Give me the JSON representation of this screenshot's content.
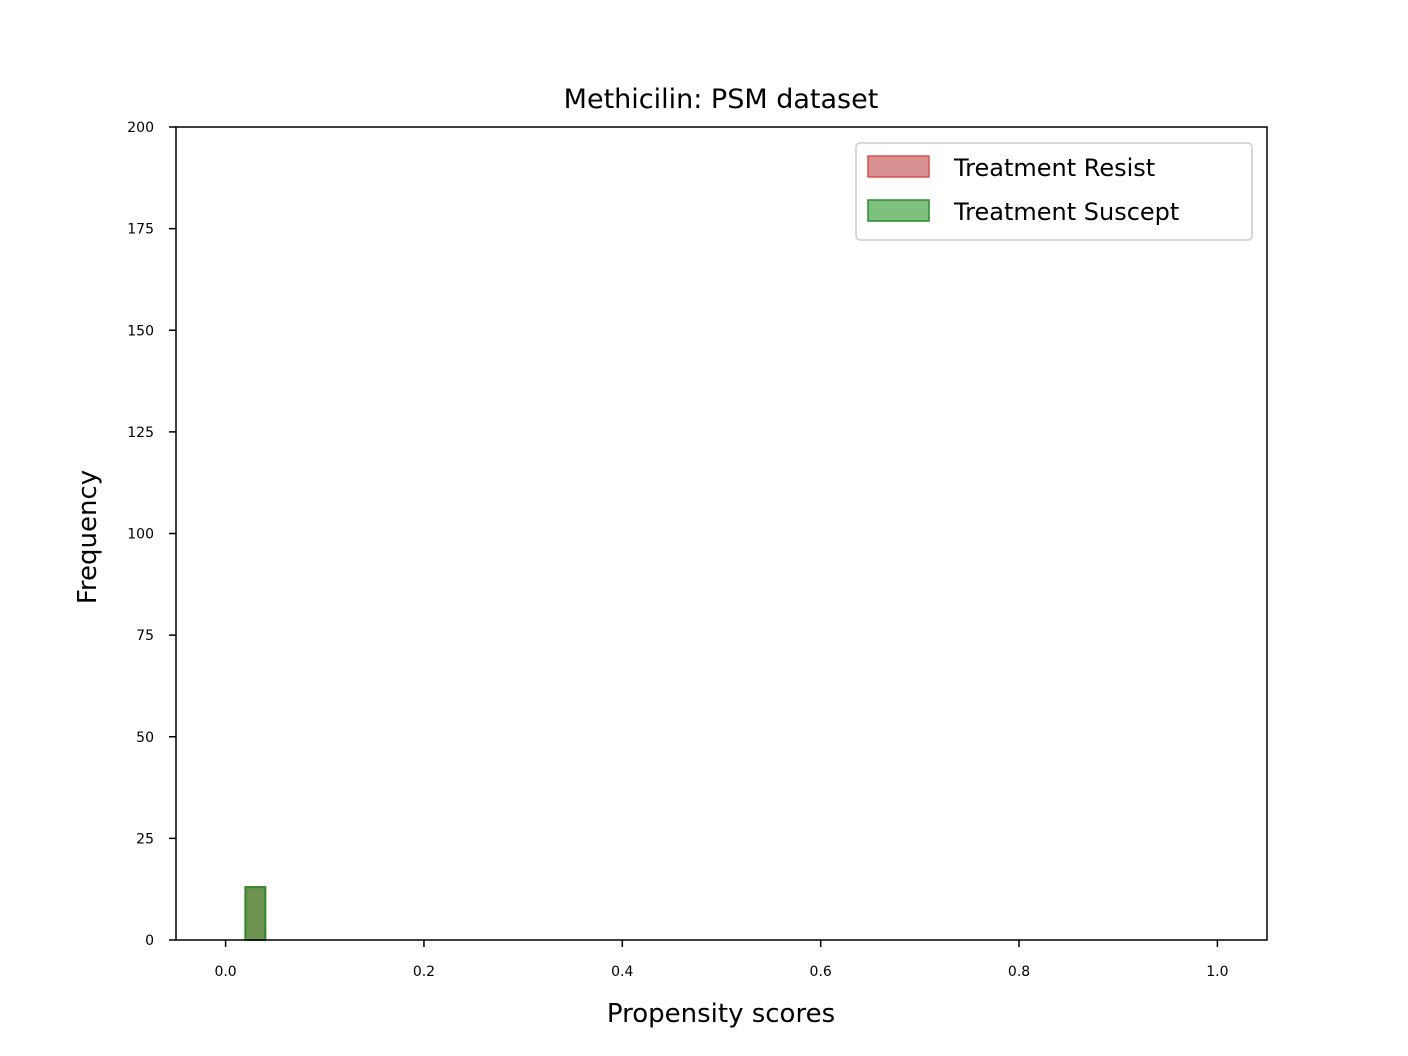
{
  "chart_data": {
    "type": "bar",
    "title": "Methicilin: PSM dataset",
    "xlabel": "Propensity scores",
    "ylabel": "Frequency",
    "xlim": [
      -0.05,
      1.05
    ],
    "ylim": [
      0,
      200
    ],
    "xticks": [
      "0.0",
      "0.2",
      "0.4",
      "0.6",
      "0.8",
      "1.0"
    ],
    "xtick_values": [
      0.0,
      0.2,
      0.4,
      0.6,
      0.8,
      1.0
    ],
    "yticks": [
      "0",
      "25",
      "50",
      "75",
      "100",
      "125",
      "150",
      "175",
      "200"
    ],
    "ytick_values": [
      0,
      25,
      50,
      75,
      100,
      125,
      150,
      175,
      200
    ],
    "legend_position": "top-right",
    "series": [
      {
        "name": "Treatment Resist",
        "color": "#d9534f",
        "fill": "rgba(190,70,70,0.6)",
        "bins": [
          {
            "x0": 0.02,
            "x1": 0.04,
            "value": 13
          }
        ]
      },
      {
        "name": "Treatment Suscept",
        "color": "#2e8b2e",
        "fill": "rgba(40,150,40,0.6)",
        "bins": [
          {
            "x0": 0.02,
            "x1": 0.04,
            "value": 13
          }
        ]
      }
    ]
  }
}
